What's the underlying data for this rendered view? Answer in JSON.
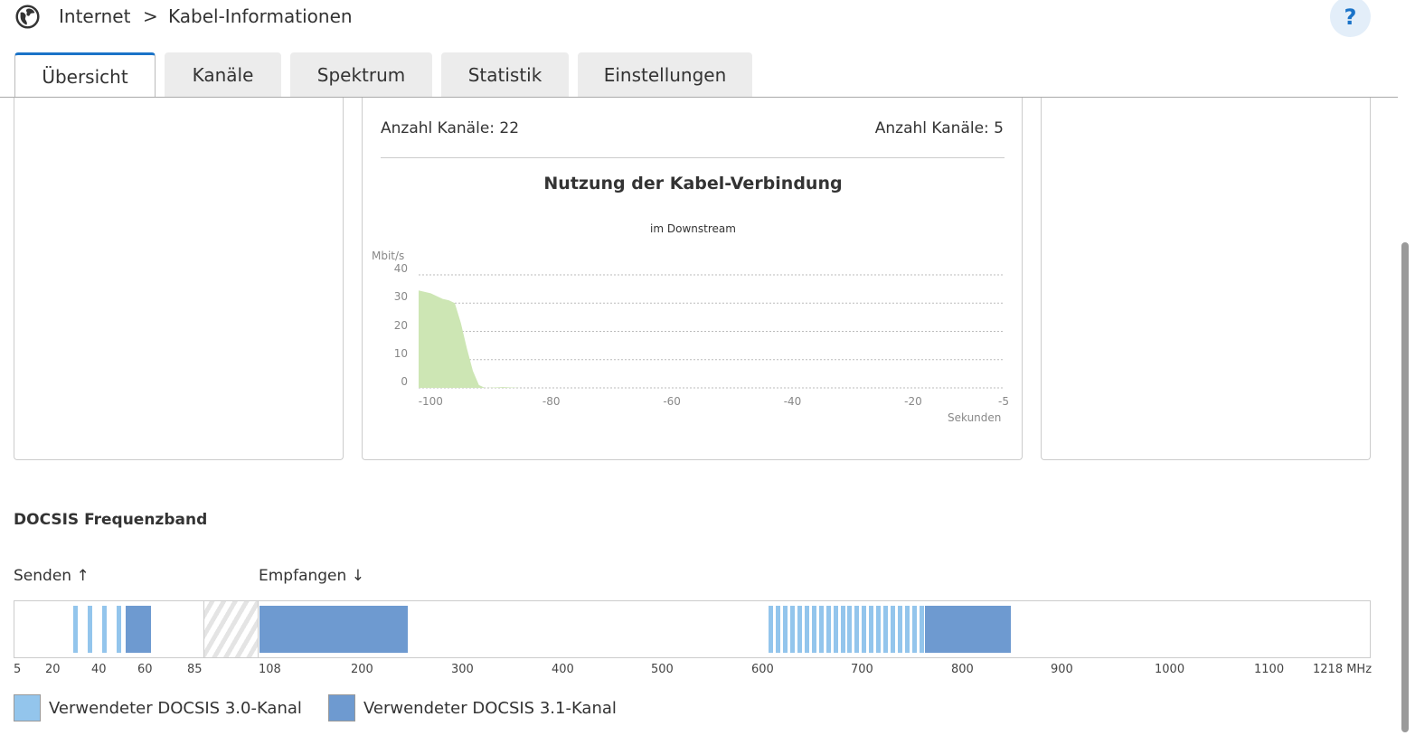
{
  "breadcrumb": {
    "root": "Internet",
    "separator": ">",
    "current": "Kabel-Informationen"
  },
  "help_label": "?",
  "tabs": [
    {
      "label": "Übersicht",
      "active": true
    },
    {
      "label": "Kanäle"
    },
    {
      "label": "Spektrum"
    },
    {
      "label": "Statistik"
    },
    {
      "label": "Einstellungen"
    }
  ],
  "center_card": {
    "channels_left": "Anzahl Kanäle: 22",
    "channels_right": "Anzahl Kanäle: 5",
    "title": "Nutzung der Kabel-Verbindung",
    "subtitle": "im Downstream"
  },
  "chart_data": {
    "type": "area",
    "title": "Nutzung der Kabel-Verbindung",
    "subtitle": "im Downstream",
    "ylabel": "Mbit/s",
    "xlabel": "Sekunden",
    "ylim": [
      0,
      40
    ],
    "xlim": [
      -102,
      -5
    ],
    "yticks": [
      "40",
      "30",
      "20",
      "10",
      "0"
    ],
    "xticks": [
      "-100",
      "-80",
      "-60",
      "-40",
      "-20",
      "-5"
    ],
    "x": [
      -102,
      -100,
      -98,
      -97,
      -96,
      -95,
      -94,
      -93,
      -92,
      -91,
      -88,
      -85,
      -5
    ],
    "values": [
      34.5,
      33.5,
      31.5,
      31,
      30,
      23,
      14,
      6,
      1,
      0,
      0.3,
      0,
      0
    ],
    "color": "#cde6b4",
    "grid": true
  },
  "freqband": {
    "title": "DOCSIS Frequenzband",
    "send_label": "Senden",
    "send_icon": "↑",
    "receive_label": "Empfangen",
    "receive_icon": "↓",
    "ticks": [
      "5",
      "20",
      "40",
      "60",
      "85",
      "108",
      "200",
      "300",
      "400",
      "500",
      "600",
      "700",
      "800",
      "900",
      "1000",
      "1100",
      "1218 MHz"
    ]
  },
  "legend": [
    {
      "label": "Verwendeter DOCSIS 3.0-Kanal",
      "color": "#93c5ec"
    },
    {
      "label": "Verwendeter DOCSIS 3.1-Kanal",
      "color": "#6e9ad0"
    }
  ]
}
